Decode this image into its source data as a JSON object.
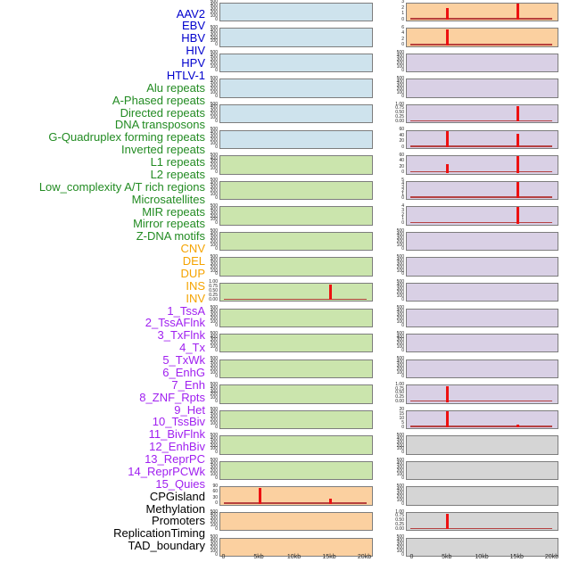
{
  "chart_data": {
    "type": "area",
    "title": "",
    "description_visible_text_only": true,
    "x_axis": {
      "labels": [
        "0",
        "5kb",
        "10kb",
        "15kb",
        "20kb"
      ],
      "domain_kb": [
        0,
        20
      ]
    },
    "ytick_presets": {
      "counts": [
        "500",
        "400",
        "300",
        "200",
        "100",
        "0"
      ],
      "frac": [
        "1.00",
        "0.75",
        "0.50",
        "0.25",
        "0.00"
      ]
    },
    "label_colors": {
      "virus": "#0000CD",
      "repeat": "#228B22",
      "sv": "#F5A300",
      "chromatin": "#A020F0",
      "other": "#000000"
    },
    "panel_colors": {
      "blue": "#CEE3ED",
      "green": "#CBE5AD",
      "orange": "#FBD0A0",
      "purple": "#D9D0E5",
      "gray": "#D5D5D5"
    },
    "signal_colors": {
      "spike": "#ED1111",
      "baseline": "#B23434"
    },
    "tracks": [
      {
        "name": "AAV2",
        "group": "virus",
        "bg": "blue",
        "yticks": "counts",
        "spikes": [],
        "baseline": false
      },
      {
        "name": "EBV",
        "group": "virus",
        "bg": "blue",
        "yticks": "counts",
        "spikes": [],
        "baseline": false
      },
      {
        "name": "HBV",
        "group": "virus",
        "bg": "blue",
        "yticks": "counts",
        "spikes": [],
        "baseline": false
      },
      {
        "name": "HIV",
        "group": "virus",
        "bg": "blue",
        "yticks": "counts",
        "spikes": [],
        "baseline": false
      },
      {
        "name": "HPV",
        "group": "virus",
        "bg": "blue",
        "yticks": "counts",
        "spikes": [],
        "baseline": false
      },
      {
        "name": "HTLV-1",
        "group": "virus",
        "bg": "blue",
        "yticks": "counts",
        "spikes": [],
        "baseline": false
      },
      {
        "name": "Alu repeats",
        "group": "repeat",
        "bg": "green",
        "yticks": "counts",
        "spikes": [],
        "baseline": false
      },
      {
        "name": "A-Phased repeats",
        "group": "repeat",
        "bg": "green",
        "yticks": "counts",
        "spikes": [],
        "baseline": false
      },
      {
        "name": "Directed repeats",
        "group": "repeat",
        "bg": "green",
        "yticks": "counts",
        "spikes": [],
        "baseline": false
      },
      {
        "name": "DNA transposons",
        "group": "repeat",
        "bg": "green",
        "yticks": "counts",
        "spikes": [],
        "baseline": false
      },
      {
        "name": "G-Quadruplex forming repeats",
        "group": "repeat",
        "bg": "green",
        "yticks": "counts",
        "spikes": [],
        "baseline": false
      },
      {
        "name": "Inverted repeats",
        "group": "repeat",
        "bg": "green",
        "yticks": "frac",
        "spikes": [
          {
            "kb": 15,
            "h": 0.97,
            "value": 1.0
          }
        ],
        "baseline": true
      },
      {
        "name": "L1 repeats",
        "group": "repeat",
        "bg": "green",
        "yticks": "counts",
        "spikes": [],
        "baseline": false
      },
      {
        "name": "L2 repeats",
        "group": "repeat",
        "bg": "green",
        "yticks": "counts",
        "spikes": [],
        "baseline": false
      },
      {
        "name": "Low_complexity A/T rich regions",
        "group": "repeat",
        "bg": "green",
        "yticks": "counts",
        "spikes": [],
        "baseline": false
      },
      {
        "name": "Microsatellites",
        "group": "repeat",
        "bg": "green",
        "yticks": "counts",
        "spikes": [],
        "baseline": false
      },
      {
        "name": "MIR repeats",
        "group": "repeat",
        "bg": "green",
        "yticks": "counts",
        "spikes": [],
        "baseline": false
      },
      {
        "name": "Mirror repeats",
        "group": "repeat",
        "bg": "green",
        "yticks": "counts",
        "spikes": [],
        "baseline": false
      },
      {
        "name": "Z-DNA motifs",
        "group": "repeat",
        "bg": "green",
        "yticks": "counts",
        "spikes": [],
        "baseline": false
      },
      {
        "name": "CNV",
        "group": "sv",
        "bg": "orange",
        "yticks": [
          "90",
          "60",
          "30",
          "0"
        ],
        "spikes": [
          {
            "kb": 5,
            "h": 1.0,
            "value": 90
          },
          {
            "kb": 15,
            "h": 0.3,
            "value": 27
          }
        ],
        "baseline": true
      },
      {
        "name": "DEL",
        "group": "sv",
        "bg": "orange",
        "yticks": "counts",
        "spikes": [],
        "baseline": false
      },
      {
        "name": "DUP",
        "group": "sv",
        "bg": "orange",
        "yticks": "counts",
        "spikes": [],
        "baseline": false
      },
      {
        "name": "INS",
        "group": "sv",
        "bg": "orange",
        "yticks": [
          "3",
          "2",
          "1",
          "0"
        ],
        "spikes": [
          {
            "kb": 5,
            "h": 0.75,
            "value": 2.3
          },
          {
            "kb": 15,
            "h": 1.0,
            "value": 3
          }
        ],
        "baseline": true
      },
      {
        "name": "INV",
        "group": "sv",
        "bg": "orange",
        "yticks": [
          "6",
          "4",
          "2",
          "0"
        ],
        "spikes": [
          {
            "kb": 5,
            "h": 1.0,
            "value": 6
          }
        ],
        "baseline": true
      },
      {
        "name": "1_TssA",
        "group": "chromatin",
        "bg": "purple",
        "yticks": "counts",
        "spikes": [],
        "baseline": false
      },
      {
        "name": "2_TssAFlnk",
        "group": "chromatin",
        "bg": "purple",
        "yticks": "counts",
        "spikes": [],
        "baseline": false
      },
      {
        "name": "3_TxFlnk",
        "group": "chromatin",
        "bg": "purple",
        "yticks": "frac",
        "spikes": [
          {
            "kb": 15,
            "h": 0.97,
            "value": 1.0
          }
        ],
        "baseline": true
      },
      {
        "name": "4_Tx",
        "group": "chromatin",
        "bg": "purple",
        "yticks": [
          "60",
          "40",
          "20",
          "0"
        ],
        "spikes": [
          {
            "kb": 5,
            "h": 1.0,
            "value": 62
          },
          {
            "kb": 15,
            "h": 0.85,
            "value": 52
          }
        ],
        "baseline": true
      },
      {
        "name": "5_TxWk",
        "group": "chromatin",
        "bg": "purple",
        "yticks": [
          "60",
          "40",
          "20",
          "0"
        ],
        "spikes": [
          {
            "kb": 5,
            "h": 0.5,
            "value": 30
          },
          {
            "kb": 15,
            "h": 1.0,
            "value": 63
          }
        ],
        "baseline": true
      },
      {
        "name": "6_EnhG",
        "group": "chromatin",
        "bg": "purple",
        "yticks": [
          "5",
          "4",
          "3",
          "2",
          "1",
          "0"
        ],
        "spikes": [
          {
            "kb": 15,
            "h": 1.0,
            "value": 5
          }
        ],
        "baseline": true
      },
      {
        "name": "7_Enh",
        "group": "chromatin",
        "bg": "purple",
        "yticks": [
          "4",
          "3",
          "2",
          "1",
          "0"
        ],
        "spikes": [
          {
            "kb": 15,
            "h": 1.0,
            "value": 4
          }
        ],
        "baseline": true
      },
      {
        "name": "8_ZNF_Rpts",
        "group": "chromatin",
        "bg": "purple",
        "yticks": "counts",
        "spikes": [],
        "baseline": false
      },
      {
        "name": "9_Het",
        "group": "chromatin",
        "bg": "purple",
        "yticks": "counts",
        "spikes": [],
        "baseline": false
      },
      {
        "name": "10_TssBiv",
        "group": "chromatin",
        "bg": "purple",
        "yticks": "counts",
        "spikes": [],
        "baseline": false
      },
      {
        "name": "11_BivFlnk",
        "group": "chromatin",
        "bg": "purple",
        "yticks": "counts",
        "spikes": [],
        "baseline": false
      },
      {
        "name": "12_EnhBiv",
        "group": "chromatin",
        "bg": "purple",
        "yticks": "counts",
        "spikes": [],
        "baseline": false
      },
      {
        "name": "13_ReprPC",
        "group": "chromatin",
        "bg": "purple",
        "yticks": "counts",
        "spikes": [],
        "baseline": false
      },
      {
        "name": "14_ReprPCWk",
        "group": "chromatin",
        "bg": "purple",
        "yticks": "frac",
        "spikes": [
          {
            "kb": 5,
            "h": 0.97,
            "value": 1.0
          }
        ],
        "baseline": true
      },
      {
        "name": "15_Quies",
        "group": "chromatin",
        "bg": "purple",
        "yticks": [
          "20",
          "15",
          "10",
          "5",
          "0"
        ],
        "spikes": [
          {
            "kb": 5,
            "h": 1.0,
            "value": 21
          },
          {
            "kb": 15,
            "h": 0.2,
            "value": 4
          }
        ],
        "baseline": true
      },
      {
        "name": "CPGisland",
        "group": "other",
        "bg": "gray",
        "yticks": "counts",
        "spikes": [],
        "baseline": false
      },
      {
        "name": "Methylation",
        "group": "other",
        "bg": "gray",
        "yticks": "counts",
        "spikes": [],
        "baseline": false
      },
      {
        "name": "Promoters",
        "group": "other",
        "bg": "gray",
        "yticks": "counts",
        "spikes": [],
        "baseline": false
      },
      {
        "name": "ReplicationTiming",
        "group": "other",
        "bg": "gray",
        "yticks": "frac",
        "spikes": [
          {
            "kb": 5,
            "h": 0.97,
            "value": 1.0
          }
        ],
        "baseline": true
      },
      {
        "name": "TAD_boundary",
        "group": "other",
        "bg": "gray",
        "yticks": "counts",
        "spikes": [],
        "baseline": false
      }
    ]
  }
}
